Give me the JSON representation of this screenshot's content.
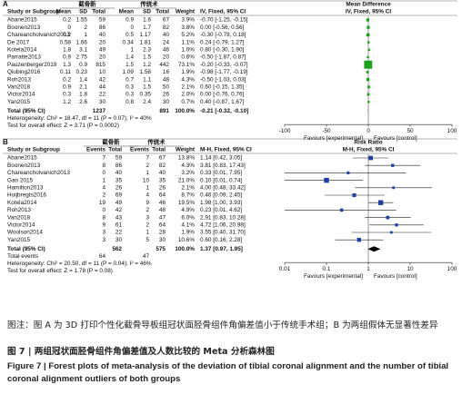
{
  "panel_a": {
    "label": "A",
    "group1": "截骨新",
    "group2": "传统术",
    "columns": [
      "Study or Subgroup",
      "Mean",
      "SD",
      "Total",
      "Mean",
      "SD",
      "Total",
      "Weight",
      "IV, Fixed, 95% CI"
    ],
    "plot_header": [
      "Mean Difference",
      "IV, Fixed, 95% CI"
    ],
    "rows": [
      {
        "cells": [
          "Abane2015",
          "0.2",
          "1.55",
          "59",
          "0.9",
          "1.6",
          "67",
          "3.9%",
          "-0.70 [-1.25, -0.15]"
        ],
        "est": -0.7,
        "lo": -1.25,
        "hi": -0.15
      },
      {
        "cells": [
          "Boonen2013",
          "0",
          "2",
          "86",
          "0",
          "1.7",
          "82",
          "3.8%",
          "0.00 [-0.56, 0.56]"
        ],
        "est": 0,
        "lo": -0.56,
        "hi": 0.56
      },
      {
        "cells": [
          "Chareancholvanich2013",
          "0.2",
          "1",
          "40",
          "0.5",
          "1.17",
          "40",
          "5.2%",
          "-0.30 [-0.78, 0.18]"
        ],
        "est": -0.3,
        "lo": -0.78,
        "hi": 0.18
      },
      {
        "cells": [
          "De 2017",
          "0.58",
          "1.66",
          "20",
          "0.34",
          "1.81",
          "24",
          "1.1%",
          "0.24 [-0.79, 1.27]"
        ],
        "est": 0.24,
        "lo": -0.79,
        "hi": 1.27
      },
      {
        "cells": [
          "Kotela2014",
          "1.8",
          "3.1",
          "49",
          "1",
          "2.3",
          "46",
          "1.0%",
          "0.80 [-0.30, 1.90]"
        ],
        "est": 0.8,
        "lo": -0.3,
        "hi": 1.9
      },
      {
        "cells": [
          "Parratte2013",
          "0.9",
          "2.75",
          "20",
          "1.4",
          "1.5",
          "20",
          "0.6%",
          "-0.50 [-1.87, 0.87]"
        ],
        "est": -0.5,
        "lo": -1.87,
        "hi": 0.87
      },
      {
        "cells": [
          "Pauzenberger2019",
          "1.3",
          "0.9",
          "815",
          "1.5",
          "1.2",
          "442",
          "73.1%",
          "-0.20 [-0.33, -0.07]"
        ],
        "est": -0.2,
        "lo": -0.33,
        "hi": -0.07
      },
      {
        "cells": [
          "Qiubing2016",
          "0.11",
          "0.23",
          "10",
          "1.09",
          "1.58",
          "16",
          "1.9%",
          "-0.98 [-1.77, -0.19]"
        ],
        "est": -0.98,
        "lo": -1.77,
        "hi": -0.19
      },
      {
        "cells": [
          "Roh2013",
          "0.2",
          "1.4",
          "42",
          "0.7",
          "1.1",
          "48",
          "4.3%",
          "-0.50 [-1.03, 0.03]"
        ],
        "est": -0.5,
        "lo": -1.03,
        "hi": 0.03
      },
      {
        "cells": [
          "Van2018",
          "0.9",
          "2.1",
          "44",
          "0.3",
          "1.5",
          "50",
          "2.1%",
          "0.60 [-0.15, 1.35]"
        ],
        "est": 0.6,
        "lo": -0.15,
        "hi": 1.35
      },
      {
        "cells": [
          "Victor2014",
          "0.3",
          "1.8",
          "22",
          "0.3",
          "0.35",
          "26",
          "2.0%",
          "0.00 [-0.76, 0.76]"
        ],
        "est": 0,
        "lo": -0.76,
        "hi": 0.76
      },
      {
        "cells": [
          "Yan2015",
          "1.2",
          "2.6",
          "30",
          "0.8",
          "2.4",
          "30",
          "0.7%",
          "0.40 [-0.87, 1.67]"
        ],
        "est": 0.4,
        "lo": -0.87,
        "hi": 1.67
      }
    ],
    "total": {
      "cells": [
        "Total (95% CI)",
        null,
        null,
        "1237",
        null,
        null,
        "891",
        "100.0%",
        "-0.21 [-0.32, -0.10]"
      ],
      "est": -0.21,
      "lo": -0.32,
      "hi": -0.1
    },
    "extra_rows": [],
    "heterogeneity": "Heterogeneity: Chi² = 18.47, df = 11 (P = 0.07); I² = 40%",
    "overall": "Test for overall effect: Z = 3.71 (P = 0.0002)",
    "log": false,
    "xlim": [
      -100,
      100
    ],
    "xticks": [
      -100,
      -50,
      0,
      50,
      100
    ],
    "favours": [
      "Favours [experimental]",
      "Favours [control]"
    ],
    "color": "#1aa31a"
  },
  "panel_b": {
    "label": "B",
    "group1": "截骨新",
    "group2": "传统术",
    "columns": [
      "Study or Subgroup",
      "Events",
      "Total",
      "Events",
      "Total",
      "Weight",
      "M-H, Fixed, 95% CI"
    ],
    "plot_header": [
      "Risk Ratio",
      "M-H, Fixed, 95% CI"
    ],
    "rows": [
      {
        "cells": [
          "Abane2015",
          "7",
          "59",
          "7",
          "67",
          "13.8%",
          "1.14 [0.42, 3.05]"
        ],
        "est": 1.14,
        "lo": 0.42,
        "hi": 3.05
      },
      {
        "cells": [
          "Boonen2013",
          "8",
          "86",
          "2",
          "82",
          "4.3%",
          "3.81 [0.83, 17.43]"
        ],
        "est": 3.81,
        "lo": 0.83,
        "hi": 17.43
      },
      {
        "cells": [
          "Chareancholvanich2013",
          "0",
          "40",
          "1",
          "40",
          "3.2%",
          "0.33 [0.01, 7.95]"
        ],
        "est": 0.33,
        "lo": 0.01,
        "hi": 7.95
      },
      {
        "cells": [
          "Gan 2015",
          "1",
          "35",
          "10",
          "35",
          "21.0%",
          "0.10 [0.01, 0.74]"
        ],
        "est": 0.1,
        "lo": 0.01,
        "hi": 0.74
      },
      {
        "cells": [
          "Hamilton2013",
          "4",
          "26",
          "1",
          "26",
          "2.1%",
          "4.00 [0.48, 33.42]"
        ],
        "est": 4,
        "lo": 0.48,
        "hi": 33.42
      },
      {
        "cells": [
          "Huijbregts2016",
          "2",
          "69",
          "4",
          "64",
          "8.7%",
          "0.46 [0.09, 2.45]"
        ],
        "est": 0.46,
        "lo": 0.09,
        "hi": 2.45
      },
      {
        "cells": [
          "Kotela2014",
          "19",
          "49",
          "9",
          "46",
          "19.5%",
          "1.98 [1.00, 3.93]"
        ],
        "est": 1.98,
        "lo": 1,
        "hi": 3.93
      },
      {
        "cells": [
          "Roh2013",
          "0",
          "42",
          "2",
          "48",
          "4.9%",
          "0.23 [0.01, 4.62]"
        ],
        "est": 0.23,
        "lo": 0.01,
        "hi": 4.62
      },
      {
        "cells": [
          "Van2018",
          "8",
          "43",
          "3",
          "47",
          "6.0%",
          "2.91 [0.83, 10.28]"
        ],
        "est": 2.91,
        "lo": 0.83,
        "hi": 10.28
      },
      {
        "cells": [
          "Victor2014",
          "9",
          "61",
          "2",
          "64",
          "4.1%",
          "4.72 [1.06, 20.98]"
        ],
        "est": 4.72,
        "lo": 1.06,
        "hi": 20.98
      },
      {
        "cells": [
          "Woolson2014",
          "3",
          "22",
          "1",
          "28",
          "1.9%",
          "3.55 [0.40, 31.70]"
        ],
        "est": 3.55,
        "lo": 0.4,
        "hi": 31.7
      },
      {
        "cells": [
          "Yan2015",
          "3",
          "30",
          "5",
          "30",
          "10.6%",
          "0.60 [0.16, 2.28]"
        ],
        "est": 0.6,
        "lo": 0.16,
        "hi": 2.28
      }
    ],
    "total": {
      "cells": [
        "Total (95% CI)",
        null,
        "562",
        null,
        "575",
        "100.0%",
        "1.37 [0.97, 1.95]"
      ],
      "est": 1.37,
      "lo": 0.97,
      "hi": 1.95
    },
    "extra_rows": [
      [
        "Total events",
        "64",
        null,
        "47",
        null,
        null,
        null
      ]
    ],
    "heterogeneity": "Heterogeneity: Chi² = 20.50, df = 11 (P = 0.04); I² = 46%",
    "overall": "Test for overall effect: Z = 1.78 (P = 0.08)",
    "log": true,
    "xlim": [
      0.01,
      100
    ],
    "xticks": [
      0.01,
      0.1,
      1,
      10,
      100
    ],
    "favours": [
      "Favours [experimental]",
      "Favours [control]"
    ],
    "color": "#1f3fa8"
  },
  "caption": {
    "note": "图注：图 A 为 3D 打印个性化截骨导板组冠状面胫骨组件角偏差值小于传统手术组；B 为两组假体无显著性差异",
    "title_cn": "图 7 | 两组冠状面胫骨组件角偏差值及人数比较的 Meta 分析森林图",
    "title_en": "Figure 7 | Forest plots of meta-analysis of the deviation of tibial coronal alignment and the number of tibial coronal alignment outliers of both groups"
  }
}
